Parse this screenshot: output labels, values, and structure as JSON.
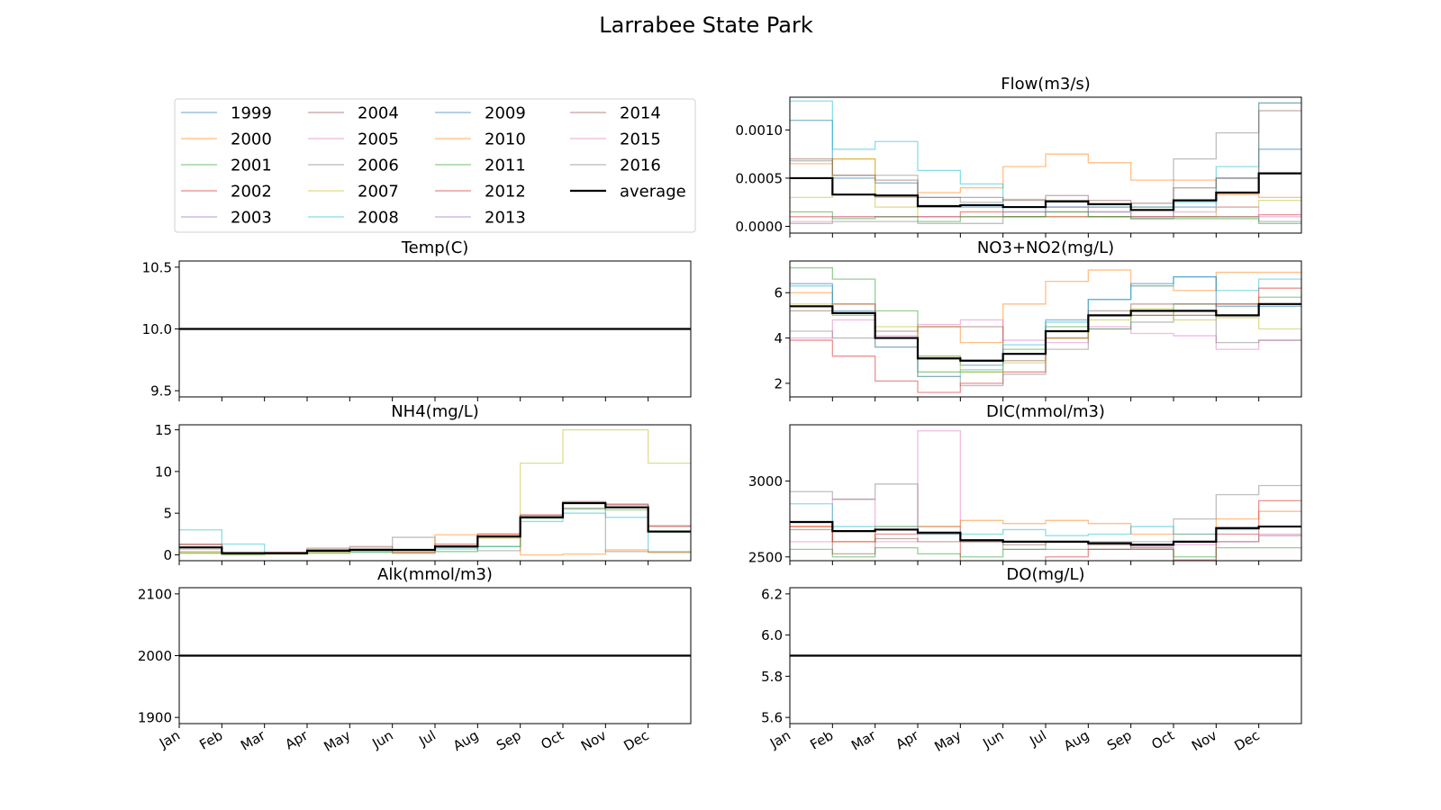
{
  "title": "Larrabee State Park",
  "months": [
    "Jan",
    "Feb",
    "Mar",
    "Apr",
    "May",
    "Jun",
    "Jul",
    "Aug",
    "Sep",
    "Oct",
    "Nov",
    "Dec"
  ],
  "legend": {
    "placement": "top-left panel",
    "entries": [
      "1999",
      "2000",
      "2001",
      "2002",
      "2003",
      "2004",
      "2005",
      "2006",
      "2007",
      "2008",
      "2009",
      "2010",
      "2011",
      "2012",
      "2013",
      "2014",
      "2015",
      "2016",
      "average"
    ],
    "colors": [
      "#1f77b4",
      "#ff7f0e",
      "#2ca02c",
      "#d62728",
      "#9467bd",
      "#8c564b",
      "#e377c2",
      "#7f7f7f",
      "#bcbd22",
      "#17becf",
      "#1f77b4",
      "#ff7f0e",
      "#2ca02c",
      "#d62728",
      "#9467bd",
      "#8c564b",
      "#e377c2",
      "#7f7f7f",
      "#000000"
    ]
  },
  "chart_data": [
    {
      "type": "line",
      "step": true,
      "panel": "temp",
      "title": "Temp(C)",
      "ylim": [
        9.45,
        10.55
      ],
      "yticks": [
        9.5,
        10.0,
        10.5
      ],
      "yticklabels": [
        "9.5",
        "10.0",
        "10.5"
      ],
      "series": [
        {
          "name": "average",
          "values": [
            10,
            10,
            10,
            10,
            10,
            10,
            10,
            10,
            10,
            10,
            10,
            10
          ]
        }
      ]
    },
    {
      "type": "line",
      "step": true,
      "panel": "nh4",
      "title": "NH4(mg/L)",
      "ylim": [
        -0.7,
        15.6
      ],
      "yticks": [
        0,
        5,
        10,
        15
      ],
      "yticklabels": [
        "0",
        "5",
        "10",
        "15"
      ],
      "series": [
        {
          "name": "2007",
          "values": [
            0.3,
            0.1,
            0.1,
            0.3,
            0.5,
            0.6,
            0.9,
            2.0,
            11,
            15,
            15,
            11
          ]
        },
        {
          "name": "2008",
          "values": [
            3.0,
            1.3,
            0.2,
            0.4,
            0.4,
            0.5,
            0.7,
            1.0,
            4.0,
            5.0,
            4.5,
            0.4
          ]
        },
        {
          "name": "2016",
          "values": [
            0.7,
            0.2,
            0.2,
            0.5,
            0.8,
            2.1,
            1.0,
            0.5,
            4.5,
            5.5,
            0.4,
            0.3
          ]
        },
        {
          "name": "2010",
          "values": [
            0.4,
            0.1,
            0.2,
            0.4,
            0.5,
            0.4,
            2.4,
            2.5,
            0.0,
            0.1,
            0.6,
            0.3
          ]
        },
        {
          "name": "2002",
          "values": [
            1.3,
            0.2,
            0.3,
            0.6,
            0.6,
            0.3,
            1.3,
            2.5,
            4.8,
            6.3,
            6.0,
            3.4
          ]
        },
        {
          "name": "2014",
          "values": [
            1.2,
            0.3,
            0.3,
            0.8,
            1.0,
            0.6,
            1.1,
            2.3,
            4.7,
            6.4,
            6.1,
            3.5
          ]
        },
        {
          "name": "2001",
          "values": [
            0.2,
            0.0,
            0.1,
            0.2,
            0.3,
            0.2,
            0.4,
            1.0,
            4.4,
            5.6,
            5.4,
            2.7
          ]
        },
        {
          "name": "average",
          "values": [
            0.9,
            0.2,
            0.2,
            0.5,
            0.6,
            0.6,
            1.0,
            2.2,
            4.5,
            6.2,
            5.7,
            2.8
          ]
        }
      ]
    },
    {
      "type": "line",
      "step": true,
      "panel": "alk",
      "title": "Alk(mmol/m3)",
      "ylim": [
        1890,
        2110
      ],
      "yticks": [
        1900,
        2000,
        2100
      ],
      "yticklabels": [
        "1900",
        "2000",
        "2100"
      ],
      "series": [
        {
          "name": "average",
          "values": [
            2000,
            2000,
            2000,
            2000,
            2000,
            2000,
            2000,
            2000,
            2000,
            2000,
            2000,
            2000
          ]
        }
      ]
    },
    {
      "type": "line",
      "step": true,
      "panel": "flow",
      "title": "Flow(m3/s)",
      "ylim": [
        -7e-05,
        0.00134
      ],
      "yticks": [
        0.0,
        0.0005,
        0.001
      ],
      "yticklabels": [
        "0.0000",
        "0.0005",
        "0.0010"
      ],
      "series": [
        {
          "name": "1999",
          "values": [
            0.0011,
            0.0005,
            0.00045,
            0.0002,
            0.0002,
            0.00015,
            0.0002,
            0.00015,
            0.0001,
            0.0002,
            0.0005,
            0.0008
          ]
        },
        {
          "name": "2000",
          "values": [
            0.00065,
            0.0007,
            0.0003,
            0.00035,
            0.0004,
            0.00062,
            0.00075,
            0.00066,
            0.00048,
            0.00048,
            0.00033,
            0.0003
          ]
        },
        {
          "name": "2008",
          "values": [
            0.0013,
            0.0008,
            0.00088,
            0.00058,
            0.00044,
            0.0002,
            0.0002,
            0.0002,
            0.0002,
            0.00025,
            0.00062,
            0.00128
          ]
        },
        {
          "name": "2016",
          "values": [
            0.00068,
            0.00053,
            0.00053,
            0.0003,
            0.00025,
            0.00028,
            0.00025,
            0.0002,
            0.0002,
            0.0007,
            0.00097,
            0.00128
          ]
        },
        {
          "name": "2007",
          "values": [
            0.0003,
            0.0007,
            0.0002,
            0.0001,
            0.0001,
            0.0001,
            0.0001,
            0.0001,
            0.0001,
            0.0001,
            0.0002,
            0.00027
          ]
        },
        {
          "name": "2014",
          "values": [
            0.0007,
            0.00053,
            0.00048,
            0.0003,
            0.0003,
            0.00027,
            0.00032,
            0.00027,
            0.00024,
            0.0004,
            0.0005,
            0.0012
          ]
        },
        {
          "name": "2002",
          "values": [
            0.0001,
            0.0001,
            0.0001,
            0.0001,
            0.00015,
            0.0001,
            0.0001,
            0.0001,
            0.0001,
            0.0001,
            0.0001,
            0.00012
          ]
        },
        {
          "name": "2005",
          "values": [
            5e-05,
            0.0001,
            0.0001,
            0.0001,
            0.0001,
            0.00015,
            0.0002,
            0.00015,
            0.0001,
            0.00015,
            0.0002,
            0.0001
          ]
        },
        {
          "name": "2006",
          "values": [
            3e-05,
            5e-05,
            5e-05,
            3e-05,
            3e-05,
            0.0001,
            0.00015,
            0.0001,
            8e-05,
            0.0001,
            0.0001,
            5e-05
          ]
        },
        {
          "name": "2011",
          "values": [
            0.00015,
            8e-05,
            0.0001,
            5e-05,
            0.0001,
            0.0001,
            0.00015,
            0.0001,
            8e-05,
            8e-05,
            8e-05,
            3e-05
          ]
        },
        {
          "name": "average",
          "values": [
            0.0005,
            0.00033,
            0.00032,
            0.00021,
            0.00022,
            0.0002,
            0.00026,
            0.00023,
            0.00017,
            0.00027,
            0.00035,
            0.00055
          ]
        }
      ]
    },
    {
      "type": "line",
      "step": true,
      "panel": "no3",
      "title": "NO3+NO2(mg/L)",
      "ylim": [
        1.4,
        7.4
      ],
      "yticks": [
        2,
        4,
        6
      ],
      "yticklabels": [
        "2",
        "4",
        "6"
      ],
      "series": [
        {
          "name": "2001",
          "values": [
            7.1,
            6.6,
            5.2,
            2.5,
            2.5,
            3.5,
            4.5,
            4.4,
            5.0,
            5.5,
            5.5,
            5.8
          ]
        },
        {
          "name": "2000",
          "values": [
            6.0,
            5.5,
            4.0,
            4.5,
            3.8,
            5.5,
            6.5,
            7.0,
            6.3,
            6.1,
            6.9,
            6.9
          ]
        },
        {
          "name": "2002",
          "values": [
            3.9,
            3.2,
            2.1,
            1.6,
            2.0,
            2.5,
            4.0,
            5.0,
            5.0,
            5.0,
            5.5,
            6.2
          ]
        },
        {
          "name": "2008",
          "values": [
            6.3,
            5.0,
            3.6,
            2.3,
            2.6,
            3.7,
            4.7,
            5.7,
            6.3,
            6.7,
            6.1,
            6.6
          ]
        },
        {
          "name": "2009",
          "values": [
            6.4,
            5.2,
            4.0,
            3.2,
            2.8,
            3.3,
            4.8,
            5.7,
            6.4,
            6.7,
            5.4,
            5.4
          ]
        },
        {
          "name": "2005",
          "values": [
            4.0,
            4.8,
            4.1,
            4.6,
            4.8,
            3.9,
            3.8,
            4.5,
            4.2,
            4.1,
            3.5,
            3.9
          ]
        },
        {
          "name": "2006",
          "values": [
            4.3,
            4.0,
            3.6,
            2.3,
            1.9,
            2.4,
            3.5,
            4.4,
            4.7,
            5.0,
            3.8,
            3.9
          ]
        },
        {
          "name": "2004",
          "values": [
            5.2,
            5.5,
            4.3,
            4.5,
            4.5,
            3.0,
            4.0,
            5.2,
            5.5,
            5.5,
            5.0,
            5.5
          ]
        },
        {
          "name": "2007",
          "values": [
            5.5,
            5.0,
            4.5,
            3.2,
            2.5,
            2.9,
            4.0,
            4.8,
            5.3,
            4.8,
            4.9,
            4.4
          ]
        },
        {
          "name": "average",
          "values": [
            5.4,
            5.1,
            4.0,
            3.1,
            3.0,
            3.3,
            4.3,
            5.0,
            5.2,
            5.2,
            5.0,
            5.5
          ]
        }
      ]
    },
    {
      "type": "line",
      "step": true,
      "panel": "dic",
      "title": "DIC(mmol/m3)",
      "ylim": [
        2475,
        3370
      ],
      "yticks": [
        2500,
        3000
      ],
      "yticklabels": [
        "2500",
        "3000"
      ],
      "series": [
        {
          "name": "2005",
          "values": [
            2600,
            2880,
            2600,
            3330,
            2600,
            2600,
            2600,
            2550,
            2570,
            2580,
            2600,
            2650
          ]
        },
        {
          "name": "2006",
          "values": [
            2930,
            2880,
            2980,
            2700,
            2600,
            2550,
            2600,
            2600,
            2600,
            2750,
            2910,
            2970
          ]
        },
        {
          "name": "2000",
          "values": [
            2700,
            2600,
            2700,
            2700,
            2740,
            2720,
            2740,
            2720,
            2650,
            2650,
            2750,
            2800
          ]
        },
        {
          "name": "2002",
          "values": [
            2700,
            2600,
            2650,
            2650,
            2450,
            2430,
            2500,
            2550,
            2550,
            2480,
            2650,
            2870
          ]
        },
        {
          "name": "2011",
          "values": [
            2550,
            2500,
            2560,
            2520,
            2500,
            2550,
            2550,
            2550,
            2550,
            2500,
            2560,
            2560
          ]
        },
        {
          "name": "2008",
          "values": [
            2850,
            2700,
            2700,
            2650,
            2650,
            2680,
            2640,
            2650,
            2700,
            2650,
            2680,
            2700
          ]
        },
        {
          "name": "2014",
          "values": [
            2680,
            2520,
            2620,
            2600,
            2600,
            2580,
            2600,
            2580,
            2560,
            2460,
            2600,
            2640
          ]
        },
        {
          "name": "average",
          "values": [
            2730,
            2670,
            2680,
            2660,
            2610,
            2600,
            2600,
            2590,
            2580,
            2600,
            2690,
            2700
          ]
        }
      ]
    },
    {
      "type": "line",
      "step": true,
      "panel": "do",
      "title": "DO(mg/L)",
      "ylim": [
        5.57,
        6.23
      ],
      "yticks": [
        5.6,
        5.8,
        6.0,
        6.2
      ],
      "yticklabels": [
        "5.6",
        "5.8",
        "6.0",
        "6.2"
      ],
      "series": [
        {
          "name": "average",
          "values": [
            5.9,
            5.9,
            5.9,
            5.9,
            5.9,
            5.9,
            5.9,
            5.9,
            5.9,
            5.9,
            5.9,
            5.9
          ]
        }
      ]
    }
  ]
}
